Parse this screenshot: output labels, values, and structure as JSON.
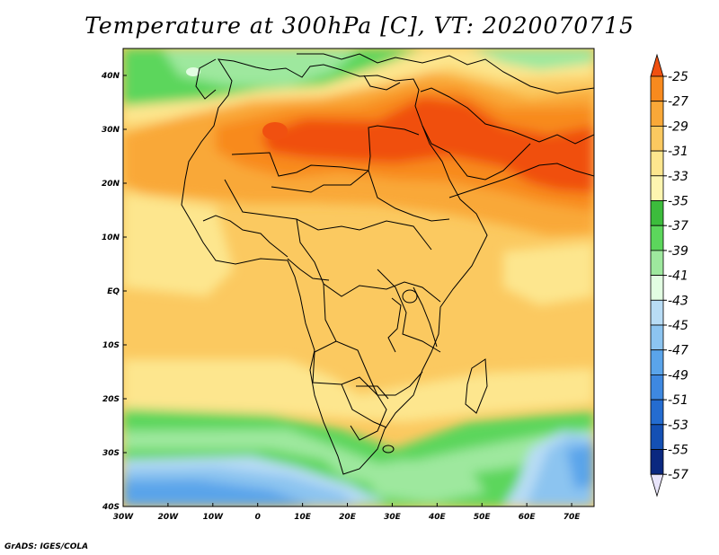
{
  "title": "Temperature at 300hPa [C], VT: 2020070715",
  "credit": "GrADS: IGES/COLA",
  "map": {
    "lon_range": [
      -30,
      75
    ],
    "lat_range": [
      -40,
      45
    ],
    "lon_ticks": [
      {
        "v": -30,
        "label": "30W"
      },
      {
        "v": -20,
        "label": "20W"
      },
      {
        "v": -10,
        "label": "10W"
      },
      {
        "v": 0,
        "label": "0"
      },
      {
        "v": 10,
        "label": "10E"
      },
      {
        "v": 20,
        "label": "20E"
      },
      {
        "v": 30,
        "label": "30E"
      },
      {
        "v": 40,
        "label": "40E"
      },
      {
        "v": 50,
        "label": "50E"
      },
      {
        "v": 60,
        "label": "60E"
      },
      {
        "v": 70,
        "label": "70E"
      }
    ],
    "lat_ticks": [
      {
        "v": 40,
        "label": "40N"
      },
      {
        "v": 30,
        "label": "30N"
      },
      {
        "v": 20,
        "label": "20N"
      },
      {
        "v": 10,
        "label": "10N"
      },
      {
        "v": 0,
        "label": "EQ"
      },
      {
        "v": -10,
        "label": "10S"
      },
      {
        "v": -20,
        "label": "20S"
      },
      {
        "v": -30,
        "label": "30S"
      },
      {
        "v": -40,
        "label": "40S"
      }
    ]
  },
  "colorbar": {
    "levels": [
      "-25",
      "-27",
      "-29",
      "-31",
      "-33",
      "-35",
      "-37",
      "-39",
      "-41",
      "-43",
      "-45",
      "-47",
      "-49",
      "-51",
      "-53",
      "-55",
      "-57"
    ],
    "colors": [
      "#f05010",
      "#f88a1e",
      "#f9a838",
      "#fbc960",
      "#fde68e",
      "#fdf5b0",
      "#3cbc3c",
      "#5cd65c",
      "#9ee89e",
      "#e2fde2",
      "#b8dcf5",
      "#8cc4f0",
      "#5aa4ea",
      "#3e88e0",
      "#246cd0",
      "#1450b4",
      "#0a2880",
      "#e8e4fa"
    ]
  }
}
